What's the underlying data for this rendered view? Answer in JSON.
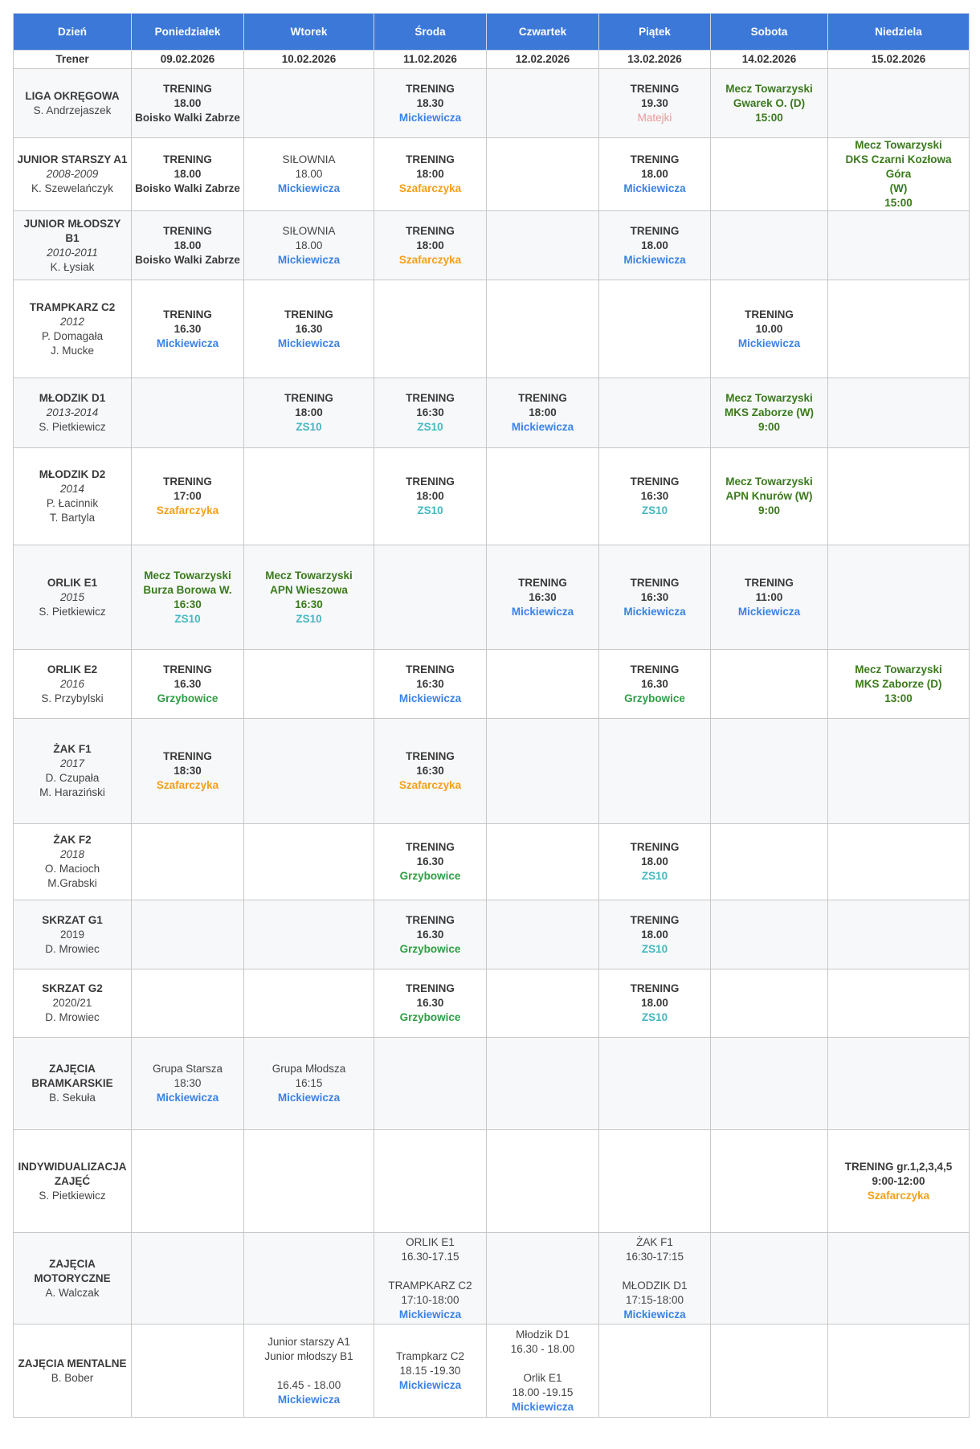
{
  "header": {
    "days": [
      "Dzień",
      "Poniedziałek",
      "Wtorek",
      "Środa",
      "Czwartek",
      "Piątek",
      "Sobota",
      "Niedziela"
    ],
    "dates": [
      "Trener",
      "09.02.2026",
      "10.02.2026",
      "11.02.2026",
      "12.02.2026",
      "13.02.2026",
      "14.02.2026",
      "15.02.2026"
    ]
  },
  "colors": {
    "header": "#3b78d8",
    "Mickiewicza": "#3b82e6",
    "Szafarczyka": "#f5a01a",
    "ZS10": "#45b8c0",
    "Grzybowice": "#2f9e44",
    "Matejki": "#e89898",
    "mecz": "#3a7a1c"
  },
  "rows": [
    {
      "group": [
        [
          "LIGA OKRĘGOWA",
          "b"
        ],
        [
          "S. Andrzejaszek",
          "n"
        ]
      ],
      "cells": [
        [
          [
            "TRENING",
            "b"
          ],
          [
            "18.00",
            "b"
          ],
          [
            "Boisko Walki Zabrze",
            "b"
          ]
        ],
        [],
        [
          [
            "TRENING",
            "b"
          ],
          [
            "18.30",
            "b"
          ],
          [
            "Mickiewicza",
            "mick"
          ]
        ],
        [],
        [
          [
            "TRENING",
            "b"
          ],
          [
            "19.30",
            "b"
          ],
          [
            "Matejki",
            "mat"
          ]
        ],
        [
          [
            "Mecz Towarzyski",
            "match"
          ],
          [
            "Gwarek O. (D)",
            "match"
          ],
          [
            "15:00",
            "match"
          ]
        ],
        []
      ]
    },
    {
      "group": [
        [
          "JUNIOR STARSZY A1",
          "b"
        ],
        [
          "2008-2009",
          "i"
        ],
        [
          "K. Szewelańczyk",
          "n"
        ]
      ],
      "cells": [
        [
          [
            "TRENING",
            "b"
          ],
          [
            "18.00",
            "b"
          ],
          [
            "Boisko Walki Zabrze",
            "b"
          ]
        ],
        [
          [
            "SIŁOWNIA",
            "n"
          ],
          [
            "18.00",
            "n"
          ],
          [
            "Mickiewicza",
            "mick"
          ]
        ],
        [
          [
            "TRENING",
            "b"
          ],
          [
            "18:00",
            "b"
          ],
          [
            "Szafarczyka",
            "szaf"
          ]
        ],
        [],
        [
          [
            "TRENING",
            "b"
          ],
          [
            "18.00",
            "b"
          ],
          [
            "Mickiewicza",
            "mick"
          ]
        ],
        [],
        [
          [
            "Mecz Towarzyski",
            "match"
          ],
          [
            "DKS Czarni Kozłowa Góra",
            "match"
          ],
          [
            "(W)",
            "match"
          ],
          [
            "15:00",
            "match"
          ]
        ]
      ]
    },
    {
      "group": [
        [
          "JUNIOR MŁODSZY B1",
          "b"
        ],
        [
          "2010-2011",
          "i"
        ],
        [
          "K. Łysiak",
          "n"
        ]
      ],
      "cells": [
        [
          [
            "TRENING",
            "b"
          ],
          [
            "18.00",
            "b"
          ],
          [
            "Boisko Walki Zabrze",
            "b"
          ]
        ],
        [
          [
            "SIŁOWNIA",
            "n"
          ],
          [
            "18.00",
            "n"
          ],
          [
            "Mickiewicza",
            "mick"
          ]
        ],
        [
          [
            "TRENING",
            "b"
          ],
          [
            "18:00",
            "b"
          ],
          [
            "Szafarczyka",
            "szaf"
          ]
        ],
        [],
        [
          [
            "TRENING",
            "b"
          ],
          [
            "18.00",
            "b"
          ],
          [
            "Mickiewicza",
            "mick"
          ]
        ],
        [],
        []
      ]
    },
    {
      "group": [
        [
          "TRAMPKARZ C2",
          "b"
        ],
        [
          "2012",
          "i"
        ],
        [
          "P. Domagała",
          "n"
        ],
        [
          "J. Mucke",
          "n"
        ]
      ],
      "cells": [
        [
          [
            "TRENING",
            "b"
          ],
          [
            "16.30",
            "b"
          ],
          [
            "Mickiewicza",
            "mick"
          ]
        ],
        [
          [
            "TRENING",
            "b"
          ],
          [
            "16.30",
            "b"
          ],
          [
            "Mickiewicza",
            "mick"
          ]
        ],
        [],
        [],
        [],
        [
          [
            "TRENING",
            "b"
          ],
          [
            "10.00",
            "b"
          ],
          [
            "Mickiewicza",
            "mick"
          ]
        ],
        []
      ]
    },
    {
      "group": [
        [
          "MŁODZIK D1",
          "b"
        ],
        [
          "2013-2014",
          "i"
        ],
        [
          "S. Pietkiewicz",
          "n"
        ]
      ],
      "cells": [
        [],
        [
          [
            "TRENING",
            "b"
          ],
          [
            "18:00",
            "b"
          ],
          [
            "ZS10",
            "zs10"
          ]
        ],
        [
          [
            "TRENING",
            "b"
          ],
          [
            "16:30",
            "b"
          ],
          [
            "ZS10",
            "zs10"
          ]
        ],
        [
          [
            "TRENING",
            "b"
          ],
          [
            "18:00",
            "b"
          ],
          [
            "Mickiewicza",
            "mick"
          ]
        ],
        [],
        [
          [
            "Mecz Towarzyski",
            "match"
          ],
          [
            "MKS Zaborze (W)",
            "match"
          ],
          [
            "9:00",
            "match"
          ]
        ],
        []
      ]
    },
    {
      "group": [
        [
          "MŁODZIK D2",
          "b"
        ],
        [
          "2014",
          "i"
        ],
        [
          "P. Łacinnik",
          "n"
        ],
        [
          "T. Bartyla",
          "n"
        ]
      ],
      "cells": [
        [
          [
            "TRENING",
            "b"
          ],
          [
            "17:00",
            "b"
          ],
          [
            "Szafarczyka",
            "szaf"
          ]
        ],
        [],
        [
          [
            "TRENING",
            "b"
          ],
          [
            "18:00",
            "b"
          ],
          [
            "ZS10",
            "zs10"
          ]
        ],
        [],
        [
          [
            "TRENING",
            "b"
          ],
          [
            "16:30",
            "b"
          ],
          [
            "ZS10",
            "zs10"
          ]
        ],
        [
          [
            "Mecz Towarzyski",
            "match"
          ],
          [
            "APN Knurów (W)",
            "match"
          ],
          [
            "9:00",
            "match"
          ]
        ],
        []
      ]
    },
    {
      "group": [
        [
          "ORLIK E1",
          "b"
        ],
        [
          "2015",
          "i"
        ],
        [
          "S. Pietkiewicz",
          "n"
        ]
      ],
      "cells": [
        [
          [
            "Mecz Towarzyski",
            "match"
          ],
          [
            "Burza Borowa W.",
            "match"
          ],
          [
            "16:30",
            "match"
          ],
          [
            "ZS10",
            "zs10"
          ]
        ],
        [
          [
            "Mecz Towarzyski",
            "match"
          ],
          [
            "APN Wieszowa",
            "match"
          ],
          [
            "16:30",
            "match"
          ],
          [
            "ZS10",
            "zs10"
          ]
        ],
        [],
        [
          [
            "TRENING",
            "b"
          ],
          [
            "16:30",
            "b"
          ],
          [
            "Mickiewicza",
            "mick"
          ]
        ],
        [
          [
            "TRENING",
            "b"
          ],
          [
            "16:30",
            "b"
          ],
          [
            "Mickiewicza",
            "mick"
          ]
        ],
        [
          [
            "TRENING",
            "b"
          ],
          [
            "11:00",
            "b"
          ],
          [
            "Mickiewicza",
            "mick"
          ]
        ],
        []
      ]
    },
    {
      "group": [
        [
          "ORLIK E2",
          "b"
        ],
        [
          "2016",
          "i"
        ],
        [
          "S. Przybylski",
          "n"
        ]
      ],
      "cells": [
        [
          [
            "TRENING",
            "b"
          ],
          [
            "16.30",
            "b"
          ],
          [
            "Grzybowice",
            "grzy"
          ]
        ],
        [],
        [
          [
            "TRENING",
            "b"
          ],
          [
            "16:30",
            "b"
          ],
          [
            "Mickiewicza",
            "mick"
          ]
        ],
        [],
        [
          [
            "TRENING",
            "b"
          ],
          [
            "16.30",
            "b"
          ],
          [
            "Grzybowice",
            "grzy"
          ]
        ],
        [],
        [
          [
            "Mecz Towarzyski",
            "match"
          ],
          [
            "MKS Zaborze (D)",
            "match"
          ],
          [
            "13:00",
            "match"
          ]
        ]
      ]
    },
    {
      "group": [
        [
          "ŻAK F1",
          "b"
        ],
        [
          "2017",
          "i"
        ],
        [
          "D. Czupała",
          "n"
        ],
        [
          "M. Haraziński",
          "n"
        ]
      ],
      "cells": [
        [
          [
            "TRENING",
            "b"
          ],
          [
            "18:30",
            "b"
          ],
          [
            "Szafarczyka",
            "szaf"
          ]
        ],
        [],
        [
          [
            "TRENING",
            "b"
          ],
          [
            "16:30",
            "b"
          ],
          [
            "Szafarczyka",
            "szaf"
          ]
        ],
        [],
        [],
        [],
        []
      ]
    },
    {
      "group": [
        [
          "ŻAK F2",
          "b"
        ],
        [
          "2018",
          "i"
        ],
        [
          "O. Macioch",
          "n"
        ],
        [
          "M.Grabski",
          "n"
        ]
      ],
      "cells": [
        [],
        [],
        [
          [
            "TRENING",
            "b"
          ],
          [
            "16.30",
            "b"
          ],
          [
            "Grzybowice",
            "grzy"
          ]
        ],
        [],
        [
          [
            "TRENING",
            "b"
          ],
          [
            "18.00",
            "b"
          ],
          [
            "ZS10",
            "zs10"
          ]
        ],
        [],
        []
      ]
    },
    {
      "group": [
        [
          "SKRZAT G1",
          "b"
        ],
        [
          "2019",
          "n"
        ],
        [
          "D. Mrowiec",
          "n"
        ]
      ],
      "cells": [
        [],
        [],
        [
          [
            "TRENING",
            "b"
          ],
          [
            "16.30",
            "b"
          ],
          [
            "Grzybowice",
            "grzy"
          ]
        ],
        [],
        [
          [
            "TRENING",
            "b"
          ],
          [
            "18.00",
            "b"
          ],
          [
            "ZS10",
            "zs10"
          ]
        ],
        [],
        []
      ]
    },
    {
      "group": [
        [
          "SKRZAT G2",
          "b"
        ],
        [
          "2020/21",
          "n"
        ],
        [
          "D. Mrowiec",
          "n"
        ]
      ],
      "cells": [
        [],
        [],
        [
          [
            "TRENING",
            "b"
          ],
          [
            "16.30",
            "b"
          ],
          [
            "Grzybowice",
            "grzy"
          ]
        ],
        [],
        [
          [
            "TRENING",
            "b"
          ],
          [
            "18.00",
            "b"
          ],
          [
            "ZS10",
            "zs10"
          ]
        ],
        [],
        []
      ]
    },
    {
      "group": [
        [
          "ZAJĘCIA",
          "b"
        ],
        [
          "BRAMKARSKIE",
          "b"
        ],
        [
          "B. Sekuła",
          "n"
        ]
      ],
      "cells": [
        [
          [
            "Grupa Starsza",
            "n"
          ],
          [
            "18:30",
            "n"
          ],
          [
            "Mickiewicza",
            "mick"
          ]
        ],
        [
          [
            "Grupa Młodsza",
            "n"
          ],
          [
            "16:15",
            "n"
          ],
          [
            "Mickiewicza",
            "mick"
          ]
        ],
        [],
        [],
        [],
        [],
        []
      ]
    },
    {
      "group": [
        [
          "INDYWIDUALIZACJA",
          "b"
        ],
        [
          "ZAJĘĆ",
          "b"
        ],
        [
          "S. Pietkiewicz",
          "n"
        ]
      ],
      "cells": [
        [],
        [],
        [],
        [],
        [],
        [],
        [
          [
            "TRENING gr.1,2,3,4,5",
            "b"
          ],
          [
            "9:00-12:00",
            "b"
          ],
          [
            "Szafarczyka",
            "szaf"
          ]
        ]
      ]
    },
    {
      "group": [
        [
          "ZAJĘCIA",
          "b"
        ],
        [
          "MOTORYCZNE",
          "b"
        ],
        [
          "A. Walczak",
          "n"
        ]
      ],
      "cells": [
        [],
        [],
        [
          [
            "ORLIK E1",
            "n"
          ],
          [
            "16.30-17.15",
            "n"
          ],
          [
            "",
            "n"
          ],
          [
            "TRAMPKARZ C2",
            "n"
          ],
          [
            "17:10-18:00",
            "n"
          ],
          [
            "Mickiewicza",
            "mick"
          ]
        ],
        [],
        [
          [
            "ŻAK F1",
            "n"
          ],
          [
            "16:30-17:15",
            "n"
          ],
          [
            "",
            "n"
          ],
          [
            "MŁODZIK D1",
            "n"
          ],
          [
            "17:15-18:00",
            "n"
          ],
          [
            "Mickiewicza",
            "mick"
          ]
        ],
        [],
        []
      ]
    },
    {
      "group": [
        [
          "ZAJĘCIA MENTALNE",
          "b"
        ],
        [
          "B. Bober",
          "n"
        ]
      ],
      "cells": [
        [],
        [
          [
            "Junior starszy A1",
            "n"
          ],
          [
            "Junior młodszy B1",
            "n"
          ],
          [
            "",
            "n"
          ],
          [
            "16.45 - 18.00",
            "n"
          ],
          [
            "Mickiewicza",
            "mick"
          ]
        ],
        [
          [
            "Trampkarz C2",
            "n"
          ],
          [
            "18.15 -19.30",
            "n"
          ],
          [
            "Mickiewicza",
            "mick"
          ]
        ],
        [
          [
            "Młodzik D1",
            "n"
          ],
          [
            "16.30 - 18.00",
            "n"
          ],
          [
            "",
            "n"
          ],
          [
            "Orlik E1",
            "n"
          ],
          [
            "18.00 -19.15",
            "n"
          ],
          [
            "Mickiewicza",
            "mick"
          ]
        ],
        [],
        [],
        []
      ]
    }
  ]
}
